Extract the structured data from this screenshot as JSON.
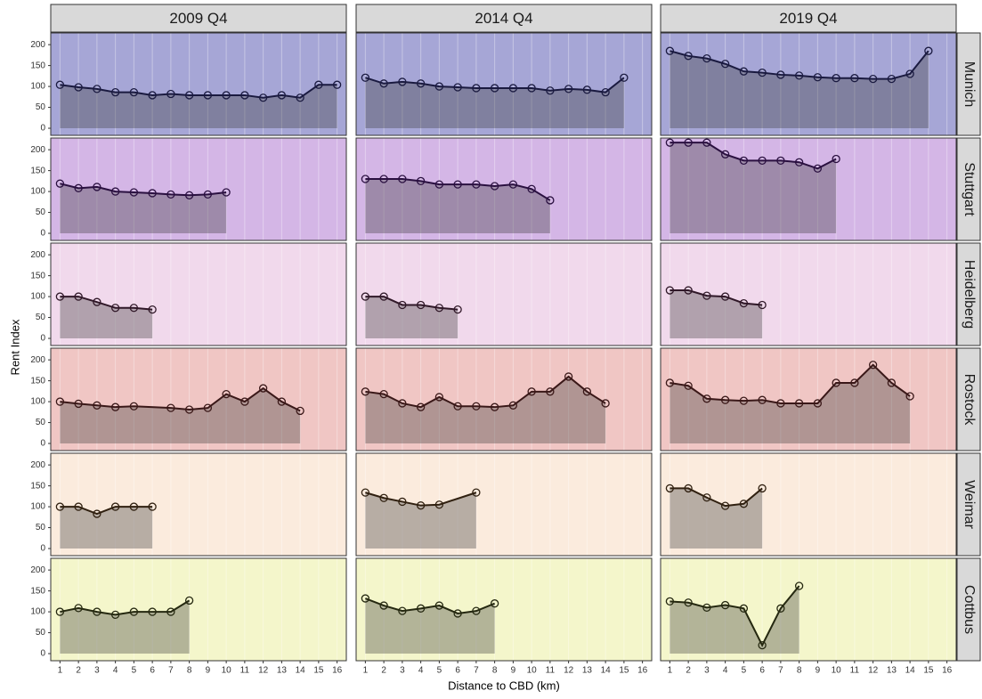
{
  "chart_data": {
    "type": "line",
    "columns": [
      "2009 Q4",
      "2014 Q4",
      "2019 Q4"
    ],
    "xlabel": "Distance to CBD (km)",
    "ylabel": "Rent Index",
    "xlim": [
      0.5,
      16.5
    ],
    "xticks": [
      1,
      2,
      3,
      4,
      5,
      6,
      7,
      8,
      9,
      10,
      11,
      12,
      13,
      14,
      15,
      16
    ],
    "ylim": [
      -17,
      228
    ],
    "yticks": [
      0,
      50,
      100,
      150,
      200
    ],
    "grid": true,
    "series": [
      {
        "name": "Munich",
        "color": "#a6a6d6",
        "line_color": "#1a1a40",
        "panels": [
          {
            "x": [
              1,
              2,
              3,
              4,
              5,
              6,
              7,
              8,
              9,
              10,
              11,
              12,
              13,
              14,
              15,
              16
            ],
            "values": [
              104,
              98,
              94,
              86,
              86,
              79,
              82,
              79,
              79,
              79,
              79,
              73,
              79,
              73,
              104,
              104
            ]
          },
          {
            "x": [
              1,
              2,
              3,
              4,
              5,
              6,
              7,
              8,
              9,
              10,
              11,
              12,
              13,
              14,
              15
            ],
            "values": [
              121,
              107,
              111,
              107,
              100,
              98,
              96,
              96,
              96,
              96,
              90,
              94,
              92,
              86,
              121
            ]
          },
          {
            "x": [
              1,
              2,
              3,
              4,
              5,
              6,
              7,
              8,
              9,
              10,
              11,
              12,
              13,
              14,
              15
            ],
            "values": [
              185,
              173,
              167,
              154,
              136,
              133,
              128,
              126,
              122,
              120,
              120,
              118,
              118,
              130,
              185
            ]
          }
        ]
      },
      {
        "name": "Stuttgart",
        "color": "#d4b6e6",
        "line_color": "#2a1040",
        "panels": [
          {
            "x": [
              1,
              2,
              3,
              4,
              5,
              6,
              7,
              8,
              9,
              10
            ],
            "values": [
              119,
              108,
              111,
              100,
              98,
              96,
              93,
              91,
              93,
              98
            ]
          },
          {
            "x": [
              1,
              2,
              3,
              4,
              5,
              6,
              7,
              8,
              9,
              10,
              11
            ],
            "values": [
              130,
              130,
              130,
              125,
              117,
              117,
              117,
              113,
              117,
              106,
              79
            ]
          },
          {
            "x": [
              1,
              2,
              3,
              4,
              5,
              6,
              7,
              8,
              9,
              10
            ],
            "values": [
              217,
              217,
              217,
              189,
              174,
              174,
              174,
              170,
              155,
              178
            ]
          }
        ]
      },
      {
        "name": "Heidelberg",
        "color": "#f1d9ec",
        "line_color": "#301828",
        "panels": [
          {
            "x": [
              1,
              2,
              3,
              4,
              5,
              6
            ],
            "values": [
              100,
              100,
              87,
              73,
              73,
              69
            ]
          },
          {
            "x": [
              1,
              2,
              3,
              4,
              5,
              6
            ],
            "values": [
              100,
              100,
              80,
              80,
              73,
              69
            ]
          },
          {
            "x": [
              1,
              2,
              3,
              4,
              5,
              6
            ],
            "values": [
              115,
              115,
              102,
              100,
              84,
              80
            ]
          }
        ]
      },
      {
        "name": "Rostock",
        "color": "#f0c6c4",
        "line_color": "#3a1818",
        "panels": [
          {
            "x": [
              1,
              2,
              3,
              4,
              5,
              7,
              8,
              9,
              10,
              11,
              12,
              13,
              14
            ],
            "values": [
              100,
              95,
              91,
              87,
              89,
              85,
              81,
              85,
              118,
              100,
              132,
              100,
              78
            ]
          },
          {
            "x": [
              1,
              2,
              3,
              4,
              5,
              6,
              7,
              8,
              9,
              10,
              11,
              12,
              13,
              14
            ],
            "values": [
              124,
              118,
              96,
              87,
              111,
              89,
              89,
              87,
              91,
              124,
              124,
              160,
              124,
              96
            ]
          },
          {
            "x": [
              1,
              2,
              3,
              4,
              5,
              6,
              7,
              8,
              9,
              10,
              11,
              12,
              13,
              14
            ],
            "values": [
              145,
              138,
              107,
              104,
              102,
              104,
              96,
              96,
              96,
              145,
              145,
              188,
              145,
              113
            ]
          }
        ]
      },
      {
        "name": "Weimar",
        "color": "#fbebdd",
        "line_color": "#302010",
        "panels": [
          {
            "x": [
              1,
              2,
              3,
              4,
              5,
              6
            ],
            "values": [
              100,
              100,
              83,
              100,
              100,
              100
            ]
          },
          {
            "x": [
              1,
              2,
              3,
              4,
              5,
              7
            ],
            "values": [
              134,
              121,
              112,
              103,
              105,
              134
            ]
          },
          {
            "x": [
              1,
              2,
              3,
              4,
              5,
              6
            ],
            "values": [
              144,
              144,
              122,
              102,
              107,
              144
            ]
          }
        ]
      },
      {
        "name": "Cottbus",
        "color": "#f4f6cb",
        "line_color": "#252810",
        "panels": [
          {
            "x": [
              1,
              2,
              3,
              4,
              5,
              6,
              7,
              8
            ],
            "values": [
              100,
              109,
              100,
              93,
              100,
              100,
              100,
              127
            ]
          },
          {
            "x": [
              1,
              2,
              3,
              4,
              5,
              6,
              7,
              8
            ],
            "values": [
              132,
              115,
              102,
              108,
              115,
              96,
              102,
              120
            ]
          },
          {
            "x": [
              1,
              2,
              3,
              4,
              5,
              6,
              7,
              8
            ],
            "values": [
              125,
              122,
              110,
              116,
              108,
              20,
              108,
              162
            ]
          }
        ]
      }
    ]
  }
}
